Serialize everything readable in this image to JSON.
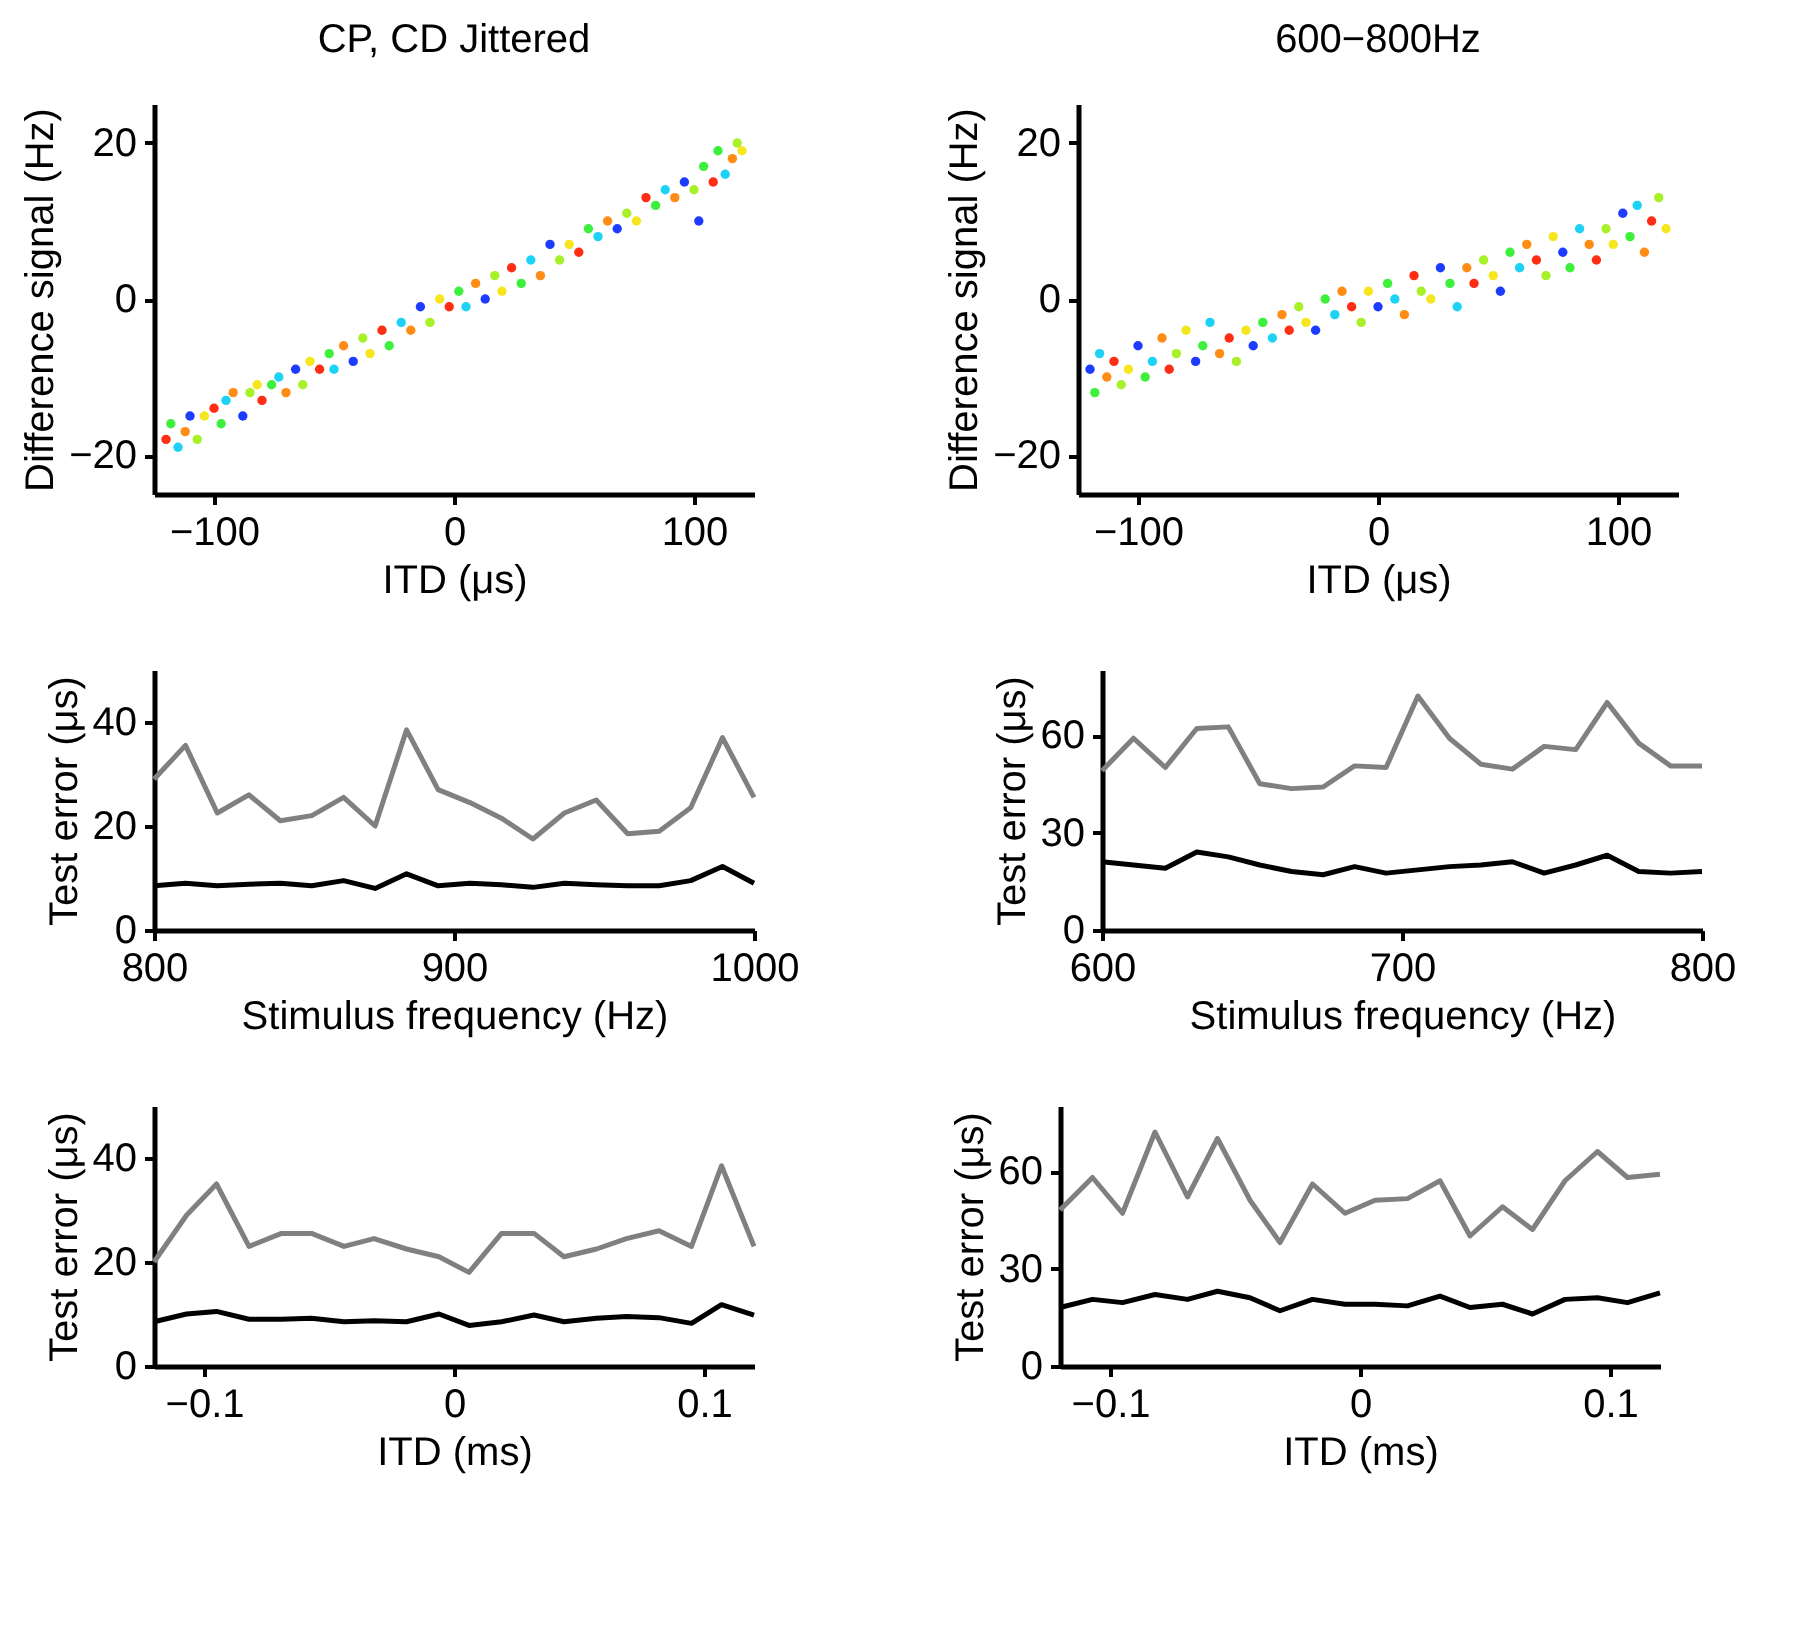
{
  "chart_data": [
    {
      "type": "scatter",
      "title": "CP, CD Jittered",
      "xlabel": "ITD (μs)",
      "ylabel": "Difference signal (Hz)",
      "xlim": [
        -125,
        125
      ],
      "xticks": [
        -100,
        0,
        100
      ],
      "ylim": [
        -25,
        25
      ],
      "yticks": [
        -20,
        0,
        20
      ],
      "grid": false,
      "series": [
        {
          "x": [
            -120,
            -118,
            -115,
            -112,
            -110,
            -107,
            -104,
            -100,
            -97,
            -95,
            -92,
            -88,
            -85,
            -82,
            -80,
            -76,
            -73,
            -70,
            -66,
            -63,
            -60,
            -56,
            -52,
            -50,
            -46,
            -42,
            -38,
            -35,
            -30,
            -27,
            -22,
            -18,
            -14,
            -10,
            -6,
            -2,
            2,
            5,
            9,
            13,
            17,
            20,
            24,
            28,
            32,
            36,
            40,
            44,
            48,
            52,
            56,
            60,
            64,
            68,
            72,
            76,
            80,
            84,
            88,
            92,
            96,
            100,
            102,
            104,
            108,
            110,
            113,
            116,
            118,
            120
          ],
          "values": [
            -18,
            -16,
            -19,
            -17,
            -15,
            -18,
            -15,
            -14,
            -16,
            -13,
            -12,
            -15,
            -12,
            -11,
            -13,
            -11,
            -10,
            -12,
            -9,
            -11,
            -8,
            -9,
            -7,
            -9,
            -6,
            -8,
            -5,
            -7,
            -4,
            -6,
            -3,
            -4,
            -1,
            -3,
            0,
            -1,
            1,
            -1,
            2,
            0,
            3,
            1,
            4,
            2,
            5,
            3,
            7,
            5,
            7,
            6,
            9,
            8,
            10,
            9,
            11,
            10,
            13,
            12,
            14,
            13,
            15,
            14,
            10,
            17,
            15,
            19,
            16,
            18,
            20,
            19
          ],
          "colors": [
            "#ff2d14",
            "#3cf03c",
            "#1ed2f5",
            "#ff8c14",
            "#1e3cff",
            "#a8f028",
            "#f5e61e",
            "#ff2d14",
            "#3cf03c",
            "#1ed2f5",
            "#ff8c14",
            "#1e3cff",
            "#a8f028",
            "#f5e61e",
            "#ff2d14",
            "#3cf03c",
            "#1ed2f5",
            "#ff8c14",
            "#1e3cff",
            "#a8f028",
            "#f5e61e",
            "#ff2d14",
            "#3cf03c",
            "#1ed2f5",
            "#ff8c14",
            "#1e3cff",
            "#a8f028",
            "#f5e61e",
            "#ff2d14",
            "#3cf03c",
            "#1ed2f5",
            "#ff8c14",
            "#1e3cff",
            "#a8f028",
            "#f5e61e",
            "#ff2d14",
            "#3cf03c",
            "#1ed2f5",
            "#ff8c14",
            "#1e3cff",
            "#a8f028",
            "#f5e61e",
            "#ff2d14",
            "#3cf03c",
            "#1ed2f5",
            "#ff8c14",
            "#1e3cff",
            "#a8f028",
            "#f5e61e",
            "#ff2d14",
            "#3cf03c",
            "#1ed2f5",
            "#ff8c14",
            "#1e3cff",
            "#a8f028",
            "#f5e61e",
            "#ff2d14",
            "#3cf03c",
            "#1ed2f5",
            "#ff8c14",
            "#1e3cff",
            "#a8f028",
            "#1e3cff",
            "#3cf03c",
            "#ff2d14",
            "#3cf03c",
            "#1ed2f5",
            "#ff8c14",
            "#a8f028",
            "#f5e61e"
          ]
        }
      ]
    },
    {
      "type": "scatter",
      "title": "600−800Hz",
      "xlabel": "ITD (μs)",
      "ylabel": "Difference signal (Hz)",
      "xlim": [
        -125,
        125
      ],
      "xticks": [
        -100,
        0,
        100
      ],
      "ylim": [
        -25,
        25
      ],
      "yticks": [
        -20,
        0,
        20
      ],
      "grid": false,
      "series": [
        {
          "x": [
            -120,
            -118,
            -116,
            -113,
            -110,
            -107,
            -104,
            -100,
            -97,
            -94,
            -90,
            -87,
            -84,
            -80,
            -76,
            -73,
            -70,
            -66,
            -62,
            -59,
            -55,
            -52,
            -48,
            -44,
            -40,
            -37,
            -33,
            -30,
            -26,
            -22,
            -18,
            -15,
            -11,
            -7,
            -4,
            0,
            4,
            7,
            11,
            15,
            18,
            22,
            26,
            30,
            33,
            37,
            40,
            44,
            48,
            51,
            55,
            59,
            62,
            66,
            70,
            73,
            77,
            80,
            84,
            88,
            91,
            95,
            98,
            102,
            105,
            108,
            111,
            114,
            117,
            120
          ],
          "values": [
            -9,
            -12,
            -7,
            -10,
            -8,
            -11,
            -9,
            -6,
            -10,
            -8,
            -5,
            -9,
            -7,
            -4,
            -8,
            -6,
            -3,
            -7,
            -5,
            -8,
            -4,
            -6,
            -3,
            -5,
            -2,
            -4,
            -1,
            -3,
            -4,
            0,
            -2,
            1,
            -1,
            -3,
            1,
            -1,
            2,
            0,
            -2,
            3,
            1,
            0,
            4,
            2,
            -1,
            4,
            2,
            5,
            3,
            1,
            6,
            4,
            7,
            5,
            3,
            8,
            6,
            4,
            9,
            7,
            5,
            9,
            7,
            11,
            8,
            12,
            6,
            10,
            13,
            9
          ],
          "colors": [
            "#1e3cff",
            "#3cf03c",
            "#1ed2f5",
            "#ff8c14",
            "#ff2d14",
            "#a8f028",
            "#f5e61e",
            "#1e3cff",
            "#3cf03c",
            "#1ed2f5",
            "#ff8c14",
            "#ff2d14",
            "#a8f028",
            "#f5e61e",
            "#1e3cff",
            "#3cf03c",
            "#1ed2f5",
            "#ff8c14",
            "#ff2d14",
            "#a8f028",
            "#f5e61e",
            "#1e3cff",
            "#3cf03c",
            "#1ed2f5",
            "#ff8c14",
            "#ff2d14",
            "#a8f028",
            "#f5e61e",
            "#1e3cff",
            "#3cf03c",
            "#1ed2f5",
            "#ff8c14",
            "#ff2d14",
            "#a8f028",
            "#f5e61e",
            "#1e3cff",
            "#3cf03c",
            "#1ed2f5",
            "#ff8c14",
            "#ff2d14",
            "#a8f028",
            "#f5e61e",
            "#1e3cff",
            "#3cf03c",
            "#1ed2f5",
            "#ff8c14",
            "#ff2d14",
            "#a8f028",
            "#f5e61e",
            "#1e3cff",
            "#3cf03c",
            "#1ed2f5",
            "#ff8c14",
            "#ff2d14",
            "#a8f028",
            "#f5e61e",
            "#1e3cff",
            "#3cf03c",
            "#1ed2f5",
            "#ff8c14",
            "#ff2d14",
            "#a8f028",
            "#f5e61e",
            "#1e3cff",
            "#3cf03c",
            "#1ed2f5",
            "#ff8c14",
            "#ff2d14",
            "#a8f028",
            "#f5e61e"
          ]
        }
      ]
    },
    {
      "type": "line",
      "xlabel": "Stimulus frequency (Hz)",
      "ylabel": "Test error (μs)",
      "xlim": [
        800,
        1000
      ],
      "xticks": [
        800,
        900,
        1000
      ],
      "ylim": [
        0,
        50
      ],
      "yticks": [
        0,
        20,
        40
      ],
      "grid": false,
      "x": [
        800,
        810.5,
        821.1,
        831.6,
        842.1,
        852.6,
        863.2,
        873.7,
        884.2,
        894.7,
        905.3,
        915.8,
        926.3,
        936.8,
        947.4,
        957.9,
        968.4,
        978.9,
        989.5,
        1000
      ],
      "series": [
        {
          "color": "#808080",
          "values": [
            29,
            35.5,
            22.5,
            26,
            21,
            22,
            25.5,
            20,
            38.5,
            27,
            24.5,
            21.5,
            17.5,
            22.5,
            25,
            18.5,
            19,
            23.5,
            37,
            25.5
          ]
        },
        {
          "color": "#000000",
          "values": [
            8.5,
            9,
            8.5,
            8.8,
            9,
            8.5,
            9.5,
            8,
            10.8,
            8.5,
            9,
            8.7,
            8.2,
            9,
            8.7,
            8.5,
            8.5,
            9.5,
            12.2,
            9
          ]
        }
      ]
    },
    {
      "type": "line",
      "xlabel": "Stimulus frequency (Hz)",
      "ylabel": "Test error (μs)",
      "xlim": [
        600,
        800
      ],
      "xticks": [
        600,
        700,
        800
      ],
      "ylim": [
        0,
        80
      ],
      "yticks": [
        0,
        30,
        60
      ],
      "grid": false,
      "x": [
        600,
        610.5,
        621.1,
        631.6,
        642.1,
        652.6,
        663.2,
        673.7,
        684.2,
        694.7,
        705.3,
        715.8,
        726.3,
        736.8,
        747.4,
        757.9,
        768.4,
        778.9,
        789.5,
        800
      ],
      "series": [
        {
          "color": "#808080",
          "values": [
            49,
            59,
            50,
            62,
            62.5,
            45,
            43.5,
            44,
            50.5,
            50,
            72,
            59,
            51,
            49.5,
            56.5,
            55.5,
            70,
            57.5,
            50.5,
            50.5
          ]
        },
        {
          "color": "#000000",
          "values": [
            21,
            20,
            19,
            24,
            22.5,
            20,
            18,
            17,
            19.5,
            17.5,
            18.5,
            19.5,
            20,
            21,
            17.5,
            20,
            23,
            18,
            17.5,
            18
          ]
        }
      ]
    },
    {
      "type": "line",
      "xlabel": "ITD (ms)",
      "ylabel": "Test error (μs)",
      "xlim": [
        -0.12,
        0.12
      ],
      "xticks": [
        -0.1,
        0,
        0.1
      ],
      "ylim": [
        0,
        50
      ],
      "yticks": [
        0,
        20,
        40
      ],
      "grid": false,
      "x": [
        -0.12,
        -0.107,
        -0.095,
        -0.082,
        -0.069,
        -0.057,
        -0.044,
        -0.032,
        -0.019,
        -0.006,
        0.006,
        0.019,
        0.032,
        0.044,
        0.057,
        0.069,
        0.082,
        0.095,
        0.107,
        0.12
      ],
      "series": [
        {
          "color": "#808080",
          "values": [
            20,
            29,
            35,
            23,
            25.5,
            25.5,
            23,
            24.5,
            22.5,
            21,
            18,
            25.5,
            25.5,
            21,
            22.5,
            24.5,
            26,
            23,
            38.5,
            23
          ]
        },
        {
          "color": "#000000",
          "values": [
            8.5,
            10,
            10.5,
            9,
            9,
            9.2,
            8.5,
            8.7,
            8.5,
            10,
            7.8,
            8.5,
            9.8,
            8.5,
            9.2,
            9.5,
            9.3,
            8.2,
            11.8,
            9.8
          ]
        }
      ]
    },
    {
      "type": "line",
      "xlabel": "ITD (ms)",
      "ylabel": "Test error (μs)",
      "xlim": [
        -0.12,
        0.12
      ],
      "xticks": [
        -0.1,
        0,
        0.1
      ],
      "ylim": [
        0,
        80
      ],
      "yticks": [
        0,
        30,
        60
      ],
      "grid": false,
      "x": [
        -0.12,
        -0.107,
        -0.095,
        -0.082,
        -0.069,
        -0.057,
        -0.044,
        -0.032,
        -0.019,
        -0.006,
        0.006,
        0.019,
        0.032,
        0.044,
        0.057,
        0.069,
        0.082,
        0.095,
        0.107,
        0.12
      ],
      "series": [
        {
          "color": "#808080",
          "values": [
            48,
            58,
            47,
            72,
            52,
            70,
            51,
            38,
            56,
            47,
            51,
            51.5,
            57,
            40,
            49,
            42,
            57,
            66,
            58,
            59
          ]
        },
        {
          "color": "#000000",
          "values": [
            18,
            20.5,
            19.5,
            22,
            20.5,
            23,
            21,
            17,
            20.5,
            19,
            19,
            18.5,
            21.5,
            18,
            19,
            16,
            20.5,
            21,
            19.5,
            22.5
          ]
        }
      ]
    }
  ]
}
